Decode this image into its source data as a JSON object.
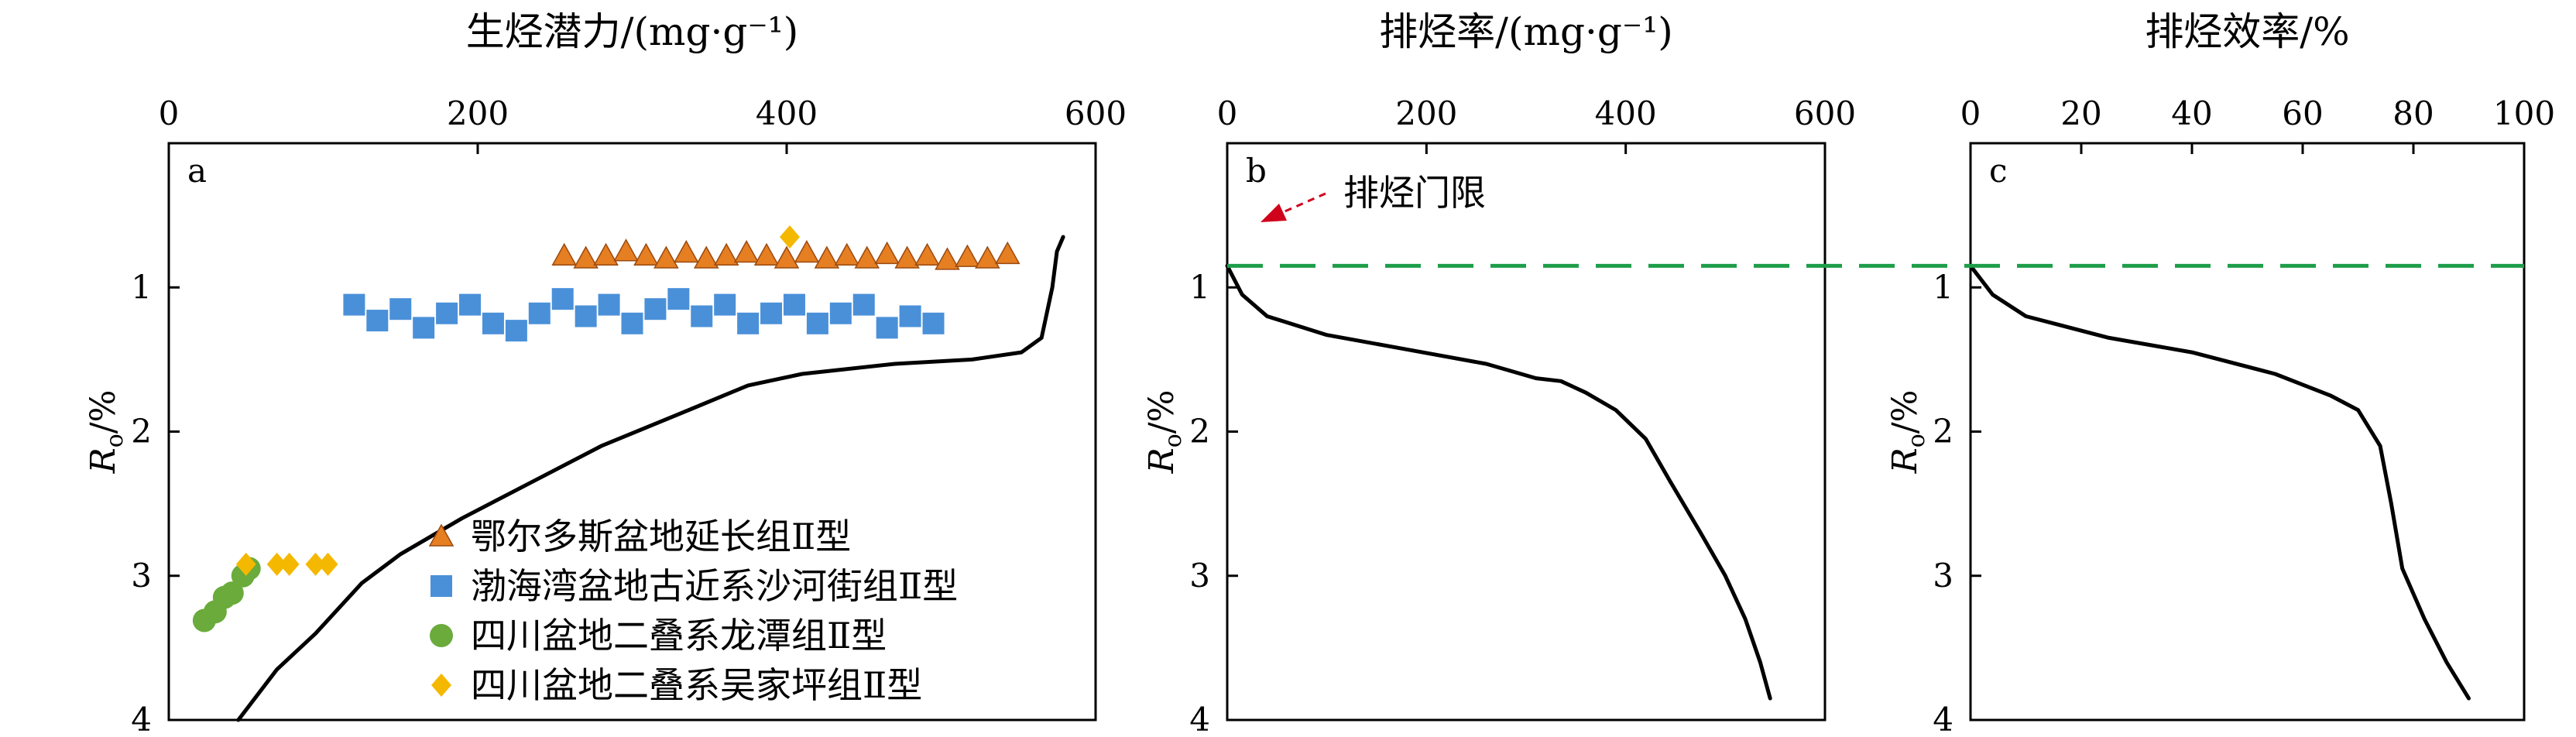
{
  "chart_data": [
    {
      "panel_label": "a",
      "type": "line",
      "title": "生烃潜力/(mg·g⁻¹)",
      "xlabel": "生烃潜力/(mg·g⁻¹)",
      "ylabel_main": "R",
      "ylabel_sub": "o",
      "ylabel_unit": "/%",
      "xlim": [
        0,
        600
      ],
      "ylim": [
        4,
        0
      ],
      "xticks": [
        0,
        200,
        400,
        600
      ],
      "yticks": [
        1,
        2,
        3,
        4
      ],
      "x_axis_position": "top",
      "y_inverted": true,
      "grid": false,
      "legend_position": "bottom-right",
      "line": {
        "name": "",
        "color": "#000000",
        "points": [
          [
            45,
            4.0
          ],
          [
            70,
            3.65
          ],
          [
            95,
            3.4
          ],
          [
            125,
            3.05
          ],
          [
            150,
            2.85
          ],
          [
            190,
            2.6
          ],
          [
            235,
            2.35
          ],
          [
            280,
            2.1
          ],
          [
            330,
            1.88
          ],
          [
            375,
            1.68
          ],
          [
            410,
            1.6
          ],
          [
            470,
            1.53
          ],
          [
            520,
            1.5
          ],
          [
            552,
            1.45
          ],
          [
            565,
            1.35
          ],
          [
            572,
            1.0
          ],
          [
            575,
            0.75
          ],
          [
            579,
            0.65
          ]
        ]
      },
      "series": [
        {
          "name": "鄂尔多斯盆地延长组Ⅱ型",
          "marker": "triangle",
          "color": "#E67E22",
          "points": [
            [
              256,
              0.78
            ],
            [
              270,
              0.8
            ],
            [
              283,
              0.78
            ],
            [
              296,
              0.75
            ],
            [
              309,
              0.78
            ],
            [
              322,
              0.8
            ],
            [
              335,
              0.76
            ],
            [
              348,
              0.8
            ],
            [
              361,
              0.78
            ],
            [
              374,
              0.76
            ],
            [
              387,
              0.78
            ],
            [
              400,
              0.8
            ],
            [
              413,
              0.76
            ],
            [
              426,
              0.8
            ],
            [
              439,
              0.78
            ],
            [
              452,
              0.8
            ],
            [
              465,
              0.77
            ],
            [
              478,
              0.8
            ],
            [
              491,
              0.78
            ],
            [
              504,
              0.81
            ],
            [
              517,
              0.79
            ],
            [
              530,
              0.8
            ],
            [
              543,
              0.77
            ]
          ]
        },
        {
          "name": "渤海湾盆地古近系沙河街组Ⅱ型",
          "marker": "square",
          "color": "#4A90D9",
          "points": [
            [
              120,
              1.12
            ],
            [
              135,
              1.23
            ],
            [
              150,
              1.15
            ],
            [
              165,
              1.28
            ],
            [
              180,
              1.18
            ],
            [
              195,
              1.12
            ],
            [
              210,
              1.25
            ],
            [
              225,
              1.3
            ],
            [
              240,
              1.18
            ],
            [
              255,
              1.08
            ],
            [
              270,
              1.2
            ],
            [
              285,
              1.12
            ],
            [
              300,
              1.25
            ],
            [
              315,
              1.15
            ],
            [
              330,
              1.08
            ],
            [
              345,
              1.2
            ],
            [
              360,
              1.12
            ],
            [
              375,
              1.25
            ],
            [
              390,
              1.18
            ],
            [
              405,
              1.12
            ],
            [
              420,
              1.25
            ],
            [
              435,
              1.18
            ],
            [
              450,
              1.12
            ],
            [
              465,
              1.28
            ],
            [
              480,
              1.2
            ],
            [
              495,
              1.25
            ]
          ]
        },
        {
          "name": "四川盆地二叠系龙潭组Ⅱ型",
          "marker": "circle",
          "color": "#6AAB3B",
          "points": [
            [
              23,
              3.31
            ],
            [
              30,
              3.25
            ],
            [
              36,
              3.15
            ],
            [
              41,
              3.12
            ],
            [
              48,
              3.0
            ],
            [
              52,
              2.95
            ]
          ]
        },
        {
          "name": "四川盆地二叠系吴家坪组Ⅱ型",
          "marker": "diamond",
          "color": "#F5B800",
          "points": [
            [
              50,
              2.92
            ],
            [
              70,
              2.92
            ],
            [
              78,
              2.92
            ],
            [
              95,
              2.92
            ],
            [
              103,
              2.92
            ],
            [
              402,
              0.65
            ]
          ]
        }
      ]
    },
    {
      "panel_label": "b",
      "type": "line",
      "title": "排烃率/(mg·g⁻¹)",
      "xlabel": "排烃率/(mg·g⁻¹)",
      "ylabel_main": "R",
      "ylabel_sub": "o",
      "ylabel_unit": "/%",
      "xlim": [
        0,
        600
      ],
      "ylim": [
        4,
        0
      ],
      "xticks": [
        0,
        200,
        400,
        600
      ],
      "yticks": [
        1,
        2,
        3,
        4
      ],
      "x_axis_position": "top",
      "y_inverted": true,
      "grid": false,
      "annotation": {
        "text": "排烃门限",
        "arrow_color": "#D0021B",
        "arrow_style": "dashed"
      },
      "line": {
        "name": "",
        "color": "#000000",
        "points": [
          [
            0,
            0.85
          ],
          [
            15,
            1.05
          ],
          [
            40,
            1.2
          ],
          [
            100,
            1.33
          ],
          [
            180,
            1.43
          ],
          [
            260,
            1.53
          ],
          [
            310,
            1.63
          ],
          [
            335,
            1.65
          ],
          [
            360,
            1.73
          ],
          [
            390,
            1.85
          ],
          [
            420,
            2.05
          ],
          [
            445,
            2.35
          ],
          [
            475,
            2.7
          ],
          [
            500,
            3.0
          ],
          [
            520,
            3.3
          ],
          [
            535,
            3.6
          ],
          [
            545,
            3.85
          ]
        ]
      }
    },
    {
      "panel_label": "c",
      "type": "line",
      "title": "排烃效率/%",
      "xlabel": "排烃效率/%",
      "ylabel_main": "R",
      "ylabel_sub": "o",
      "ylabel_unit": "/%",
      "xlim": [
        0,
        100
      ],
      "ylim": [
        4,
        0
      ],
      "xticks": [
        0,
        20,
        40,
        60,
        80,
        100
      ],
      "yticks": [
        1,
        2,
        3,
        4
      ],
      "x_axis_position": "top",
      "y_inverted": true,
      "grid": false,
      "line": {
        "name": "",
        "color": "#000000",
        "points": [
          [
            0,
            0.85
          ],
          [
            4,
            1.05
          ],
          [
            10,
            1.2
          ],
          [
            25,
            1.35
          ],
          [
            40,
            1.45
          ],
          [
            55,
            1.6
          ],
          [
            65,
            1.75
          ],
          [
            70,
            1.85
          ],
          [
            74,
            2.1
          ],
          [
            76,
            2.5
          ],
          [
            78,
            2.95
          ],
          [
            82,
            3.3
          ],
          [
            86,
            3.6
          ],
          [
            90,
            3.85
          ]
        ]
      }
    }
  ],
  "threshold_line": {
    "ro": 0.85,
    "color": "#1E9E4A",
    "style": "dashed"
  }
}
